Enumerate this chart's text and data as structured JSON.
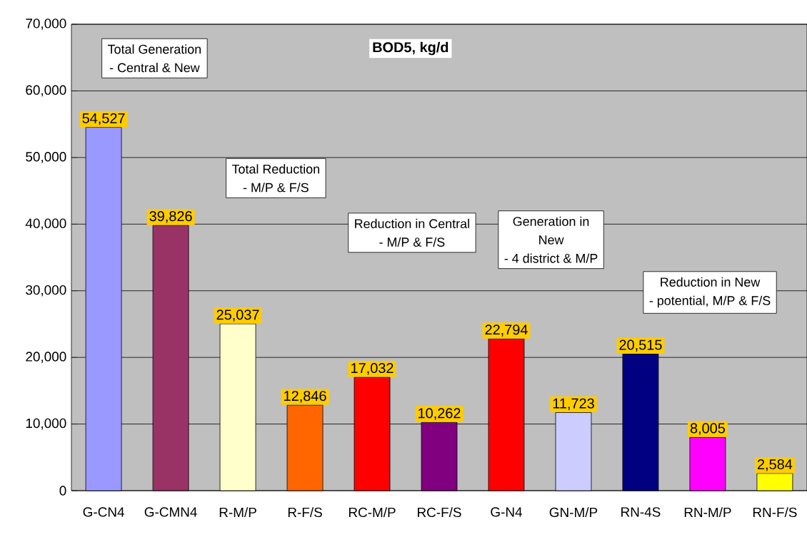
{
  "chart_data": {
    "type": "bar",
    "title": "BOD5, kg/d",
    "categories": [
      "G-CN4",
      "G-CMN4",
      "R-M/P",
      "R-F/S",
      "RC-M/P",
      "RC-F/S",
      "G-N4",
      "GN-M/P",
      "RN-4S",
      "RN-M/P",
      "RN-F/S"
    ],
    "values": [
      54527,
      39826,
      25037,
      12846,
      17032,
      10262,
      22794,
      11723,
      20515,
      8005,
      2584
    ],
    "value_labels": [
      "54,527",
      "39,826",
      "25,037",
      "12,846",
      "17,032",
      "10,262",
      "22,794",
      "11,723",
      "20,515",
      "8,005",
      "2,584"
    ],
    "colors": [
      "#9999ff",
      "#993366",
      "#ffffcc",
      "#ff6600",
      "#ff0000",
      "#800080",
      "#ff0000",
      "#ccccff",
      "#000080",
      "#ff00ff",
      "#ffff00"
    ],
    "ylim": [
      0,
      70000
    ],
    "yticks": [
      0,
      {
        "value": 10000,
        "label": "10,000"
      },
      {
        "value": 20000,
        "label": "20,000"
      },
      {
        "value": 30000,
        "label": "30,000"
      },
      {
        "value": 40000,
        "label": "40,000"
      },
      {
        "value": 50000,
        "label": "50,000"
      },
      {
        "value": 60000,
        "label": "60,000"
      },
      {
        "value": 70000,
        "label": "70,000"
      }
    ],
    "grid": "y",
    "annotations": [
      "Total Generation",
      "- Central & New",
      "Total Reduction",
      "- M/P & F/S",
      "Reduction in Central",
      "- M/P & F/S",
      "Generation in",
      "New",
      "- 4 district & M/P",
      "Reduction in New",
      "- potential, M/P & F/S"
    ]
  }
}
